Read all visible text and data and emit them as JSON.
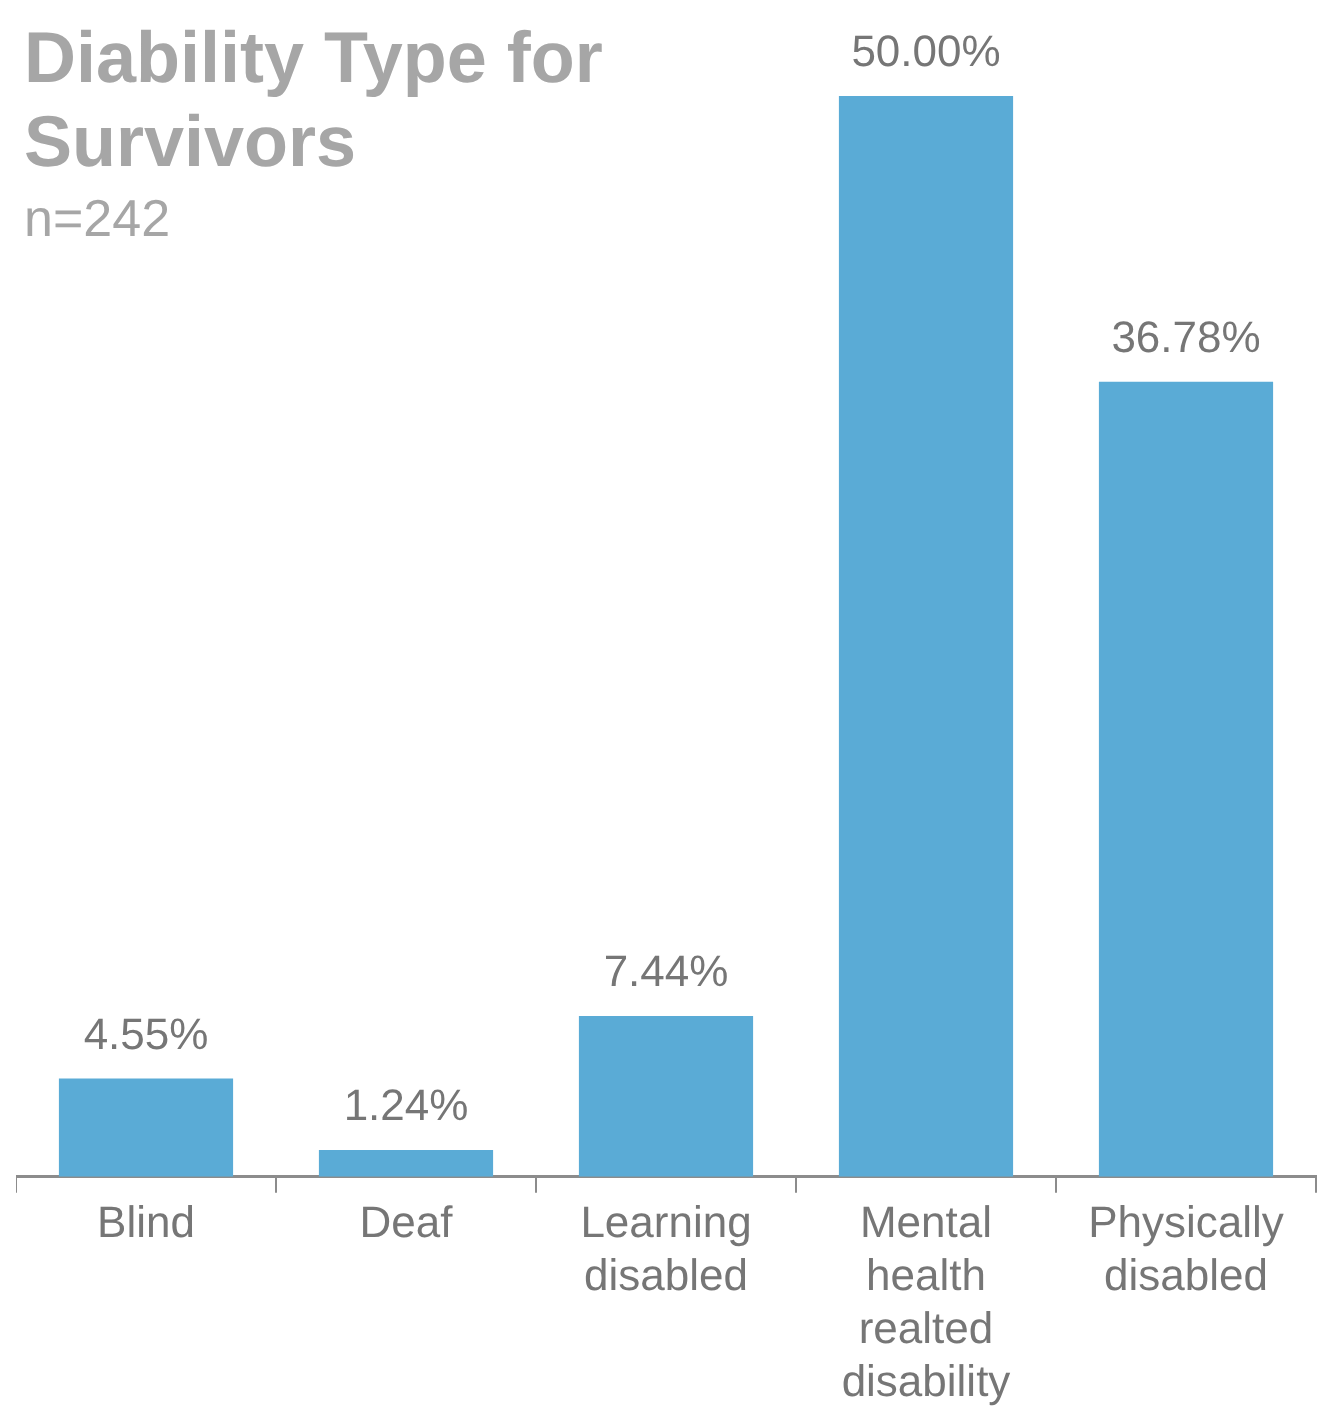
{
  "chart_data": {
    "type": "bar",
    "title": "Diability Type for Survivors",
    "subtitle": "n=242",
    "categories": [
      "Blind",
      "Deaf",
      "Learning disabled",
      "Mental health realted disability",
      "Physically disabled"
    ],
    "values": [
      4.55,
      1.24,
      7.44,
      50.0,
      36.78
    ],
    "value_labels": [
      "4.55%",
      "1.24%",
      "7.44%",
      "50.00%",
      "36.78%"
    ],
    "color": "#5aabd6",
    "grid": false,
    "legend": false
  }
}
